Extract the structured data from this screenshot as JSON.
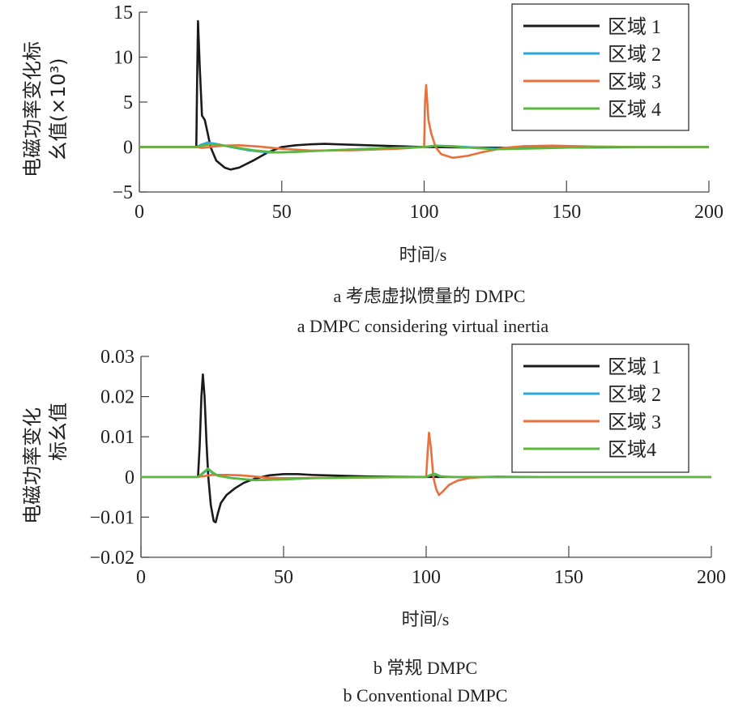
{
  "chart_data": [
    {
      "type": "line",
      "xlabel": "时间/s",
      "ylabel_line1": "电磁功率变化标",
      "ylabel_line2": "幺值(×10³)",
      "xlim": [
        0,
        200
      ],
      "ylim": [
        -5,
        15
      ],
      "xticks": [
        0,
        50,
        100,
        150,
        200
      ],
      "yticks": [
        -5,
        0,
        5,
        10,
        15
      ],
      "ytick_labels": [
        "−5",
        "0",
        "5",
        "10",
        "15"
      ],
      "legend_position": "top-right",
      "caption_cn": "a  考虑虚拟惯量的 DMPC",
      "caption_en": "a  DMPC considering virtual inertia",
      "series": [
        {
          "name": "区域 1",
          "color": "#1a1a1a",
          "x": [
            0,
            20,
            20.3,
            20.6,
            21.2,
            22,
            23,
            24,
            25,
            27,
            30,
            32,
            35,
            40,
            45,
            50,
            55,
            60,
            65,
            70,
            80,
            90,
            100,
            115,
            130,
            150,
            200
          ],
          "y": [
            0,
            0,
            8,
            14,
            9,
            3.5,
            3,
            1.5,
            0,
            -1.5,
            -2.3,
            -2.5,
            -2.3,
            -1.5,
            -0.6,
            0,
            0.2,
            0.3,
            0.35,
            0.3,
            0.2,
            0.1,
            0,
            -0.05,
            -0.1,
            -0.05,
            0
          ]
        },
        {
          "name": "区域 2",
          "color": "#2aa7dc",
          "x": [
            0,
            20,
            22,
            24,
            27,
            32,
            38,
            45,
            50,
            60,
            80,
            100,
            104,
            110,
            125,
            140,
            160,
            200
          ],
          "y": [
            0,
            0,
            0.3,
            0.5,
            0.35,
            0,
            -0.35,
            -0.6,
            -0.6,
            -0.45,
            -0.2,
            0,
            0.15,
            0.1,
            -0.2,
            -0.1,
            0,
            0
          ]
        },
        {
          "name": "区域 3",
          "color": "#e8703a",
          "x": [
            0,
            20,
            22,
            26,
            30,
            35,
            42,
            50,
            60,
            75,
            90,
            100,
            100.3,
            100.7,
            101.5,
            102.5,
            104,
            106,
            110,
            115,
            120,
            128,
            135,
            145,
            160,
            175,
            200
          ],
          "y": [
            0,
            0,
            -0.1,
            0.05,
            0.15,
            0.2,
            0.05,
            -0.2,
            -0.4,
            -0.35,
            -0.2,
            0,
            5,
            6.9,
            3,
            1.5,
            0,
            -0.8,
            -1.2,
            -1,
            -0.6,
            -0.1,
            0.1,
            0.15,
            0.05,
            0,
            0
          ]
        },
        {
          "name": "区域 4",
          "color": "#5cb83c",
          "x": [
            0,
            20,
            22,
            25,
            28,
            33,
            40,
            48,
            55,
            65,
            80,
            100,
            104,
            110,
            125,
            140,
            160,
            200
          ],
          "y": [
            0,
            0,
            0.15,
            0.3,
            0.25,
            0,
            -0.35,
            -0.6,
            -0.55,
            -0.4,
            -0.2,
            0,
            0.15,
            0.05,
            -0.25,
            -0.15,
            0,
            0
          ]
        }
      ]
    },
    {
      "type": "line",
      "xlabel": "时间/s",
      "ylabel_line1": "电磁功率变化",
      "ylabel_line2": "标幺值",
      "xlim": [
        0,
        200
      ],
      "ylim": [
        -0.02,
        0.03
      ],
      "xticks": [
        0,
        50,
        100,
        150,
        200
      ],
      "yticks": [
        -0.02,
        -0.01,
        0,
        0.01,
        0.02,
        0.03
      ],
      "ytick_labels": [
        "−0.02",
        "−0.01",
        "0",
        "0.01",
        "0.02",
        "0.03"
      ],
      "legend_position": "top-right",
      "caption_cn": "b  常规 DMPC",
      "caption_en": "b  Conventional DMPC",
      "series": [
        {
          "name": "区域 1",
          "color": "#1a1a1a",
          "x": [
            0,
            20,
            20.6,
            21.2,
            21.7,
            22.3,
            23,
            23.6,
            24.5,
            25.5,
            26.2,
            27,
            28,
            30,
            33,
            36,
            40,
            45,
            50,
            55,
            60,
            70,
            80,
            100,
            200
          ],
          "y": [
            0,
            0,
            0.008,
            0.02,
            0.0255,
            0.02,
            0.008,
            0,
            -0.007,
            -0.011,
            -0.0113,
            -0.009,
            -0.0065,
            -0.0045,
            -0.0028,
            -0.0015,
            -0.0004,
            0.0004,
            0.0007,
            0.0007,
            0.0005,
            0.0003,
            0.0001,
            0,
            0
          ]
        },
        {
          "name": "区域 2",
          "color": "#2aa7dc",
          "x": [
            0,
            20,
            22,
            23.5,
            25,
            27,
            32,
            40,
            50,
            60,
            80,
            100,
            101.5,
            103,
            105,
            110,
            200
          ],
          "y": [
            0,
            0,
            0.001,
            0.0019,
            0.001,
            0.0003,
            -0.0003,
            -0.0008,
            -0.0006,
            -0.0003,
            -0.0001,
            0,
            0.0004,
            0.0007,
            0.0001,
            0,
            0
          ]
        },
        {
          "name": "区域 3",
          "color": "#e8703a",
          "x": [
            0,
            20,
            22,
            25,
            30,
            35,
            40,
            44,
            50,
            70,
            100,
            100.5,
            101,
            101.7,
            102.5,
            103.5,
            104.5,
            106,
            108,
            111,
            115,
            120,
            125,
            140,
            200
          ],
          "y": [
            0,
            0,
            0.0002,
            0.0005,
            0.0005,
            0.0004,
            0.0001,
            -0.0002,
            -0.0003,
            -0.0002,
            0,
            0.006,
            0.011,
            0.007,
            0,
            -0.003,
            -0.0045,
            -0.0035,
            -0.002,
            -0.0009,
            -0.0003,
            0,
            0.0001,
            0,
            0
          ]
        },
        {
          "name": "区域4",
          "color": "#5cb83c",
          "x": [
            0,
            20,
            22,
            23.5,
            25,
            27,
            32,
            40,
            50,
            60,
            80,
            100,
            101.5,
            103,
            105,
            108,
            200
          ],
          "y": [
            0,
            0,
            0.0012,
            0.0021,
            0.0012,
            0.0003,
            -0.0003,
            -0.0008,
            -0.0006,
            -0.0003,
            -0.0001,
            0,
            0.0005,
            0.0008,
            0.0002,
            0,
            0
          ]
        }
      ]
    }
  ]
}
